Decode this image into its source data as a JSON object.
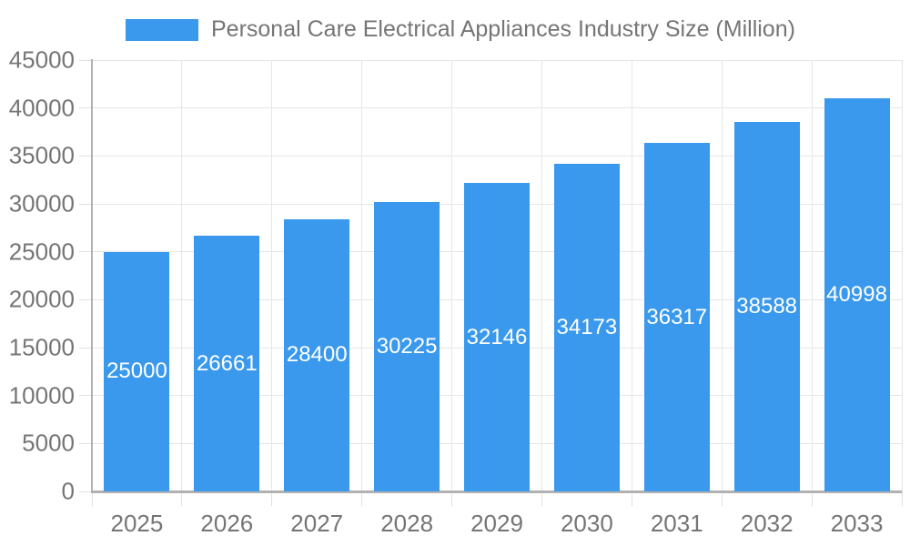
{
  "chart_data": {
    "type": "bar",
    "title": "Personal Care Electrical Appliances Industry Size (Million)",
    "categories": [
      "2025",
      "2026",
      "2027",
      "2028",
      "2029",
      "2030",
      "2031",
      "2032",
      "2033"
    ],
    "series": [
      {
        "name": "Personal Care Electrical Appliances Industry Size (Million)",
        "values": [
          25000,
          26661,
          28400,
          30225,
          32146,
          34173,
          36317,
          38588,
          40998
        ]
      }
    ],
    "value_labels": [
      "25000",
      "26661",
      "28400",
      "30225",
      "32146",
      "34173",
      "36317",
      "38588",
      "40998"
    ],
    "xlabel": "",
    "ylabel": "",
    "ylim": [
      0,
      45000
    ],
    "yticks": [
      0,
      5000,
      10000,
      15000,
      20000,
      25000,
      30000,
      35000,
      40000,
      45000
    ],
    "ytick_labels": [
      "0",
      "5000",
      "10000",
      "15000",
      "20000",
      "25000",
      "30000",
      "35000",
      "40000",
      "45000"
    ],
    "grid": "on",
    "legend_position": "top",
    "value_label_position": "inside-center"
  },
  "colors": {
    "bar": "#3a99ec",
    "axis_text": "#757575",
    "value_text": "#ffffff",
    "gridline": "#e6e6e6",
    "tick": "#e0e0e0",
    "axis_line": "#b1b1b1"
  }
}
